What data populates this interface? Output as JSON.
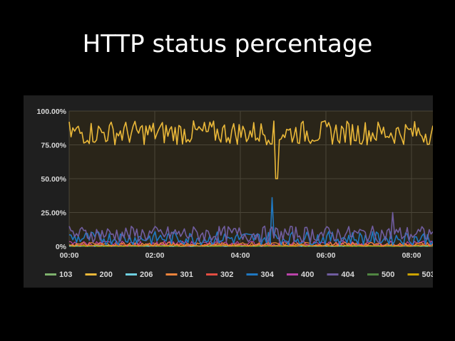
{
  "slide": {
    "title": "HTTP status percentage"
  },
  "chart_data": {
    "type": "line",
    "title": "",
    "xlabel": "",
    "ylabel": "",
    "x_ticks": [
      "00:00",
      "02:00",
      "04:00",
      "06:00",
      "08:00"
    ],
    "x_range_hours": [
      0,
      8.5
    ],
    "ylim": [
      0,
      100
    ],
    "y_ticks": [
      "0%",
      "25.00%",
      "50.00%",
      "75.00%",
      "100.00%"
    ],
    "y_tick_values": [
      0,
      25,
      50,
      75,
      100
    ],
    "grid": true,
    "legend_position": "bottom",
    "series": [
      {
        "name": "103",
        "color": "#7eb26d",
        "approx_level": 0,
        "noise": 0
      },
      {
        "name": "200",
        "color": "#eab839",
        "approx_level": 84,
        "noise": 9,
        "notable_dip": {
          "at_hours": 4.85,
          "value": 50
        }
      },
      {
        "name": "206",
        "color": "#6ed0e0",
        "approx_level": 0.5,
        "noise": 0.5
      },
      {
        "name": "301",
        "color": "#ef843c",
        "approx_level": 1.5,
        "noise": 1.5
      },
      {
        "name": "302",
        "color": "#e24d42",
        "approx_level": 1,
        "noise": 1
      },
      {
        "name": "304",
        "color": "#1f78c1",
        "approx_level": 6,
        "noise": 5,
        "notable_peak": {
          "at_hours": 4.75,
          "value": 36
        }
      },
      {
        "name": "400",
        "color": "#ba43a9",
        "approx_level": 2,
        "noise": 2
      },
      {
        "name": "404",
        "color": "#705da0",
        "approx_level": 9,
        "noise": 6,
        "notable_peak": {
          "at_hours": 7.55,
          "value": 25
        }
      },
      {
        "name": "500",
        "color": "#508642",
        "approx_level": 0,
        "noise": 0
      },
      {
        "name": "503",
        "color": "#cca300",
        "approx_level": 0.5,
        "noise": 0.5
      }
    ]
  }
}
